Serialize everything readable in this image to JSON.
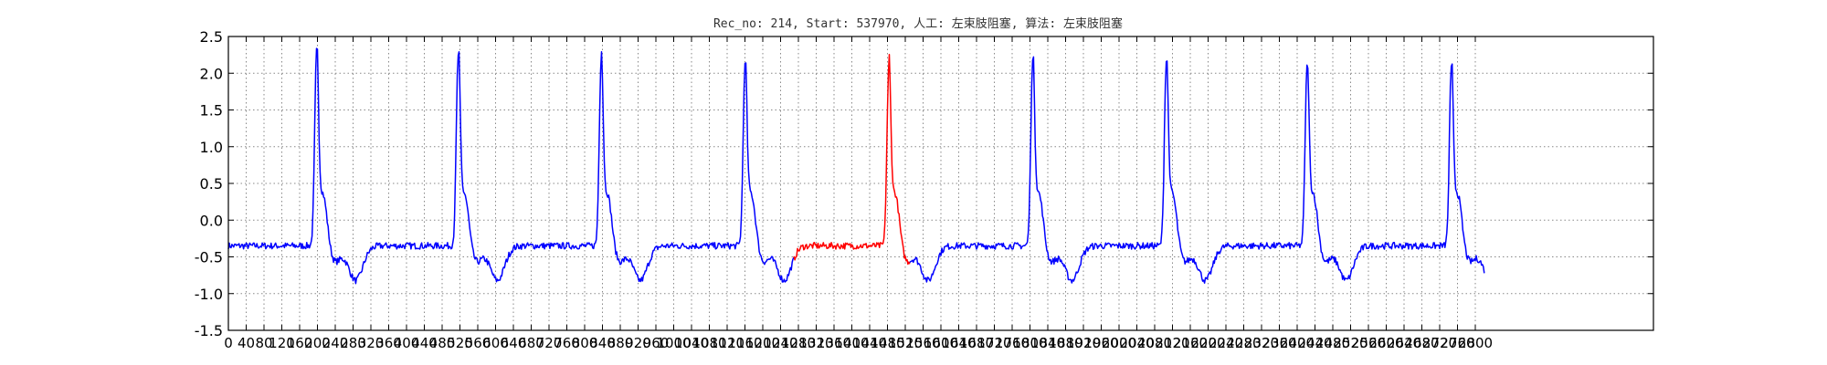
{
  "chart_data": {
    "type": "line",
    "title": "Rec_no: 214, Start: 537970, 人工: 左束肢阻塞, 算法: 左束肢阻塞",
    "xlabel": "",
    "ylabel": "",
    "xlim": [
      0,
      3200
    ],
    "ylim": [
      -1.5,
      2.5
    ],
    "yticks": [
      -1.5,
      -1.0,
      -0.5,
      0.0,
      0.5,
      1.0,
      1.5,
      2.0,
      2.5
    ],
    "ytick_labels": [
      "-1.5",
      "-1.0",
      "-0.5",
      "0.0",
      "0.5",
      "1.0",
      "1.5",
      "2.0",
      "2.5"
    ],
    "xticks": [
      0,
      40,
      80,
      120,
      160,
      200,
      240,
      280,
      320,
      360,
      400,
      440,
      480,
      520,
      560,
      600,
      640,
      680,
      720,
      760,
      800,
      840,
      880,
      920,
      960,
      1000,
      1040,
      1080,
      1120,
      1160,
      1200,
      1240,
      1280,
      1320,
      1360,
      1400,
      1440,
      1480,
      1520,
      1560,
      1600,
      1640,
      1680,
      1720,
      1760,
      1800,
      1840,
      1880,
      1920,
      1960,
      2000,
      2040,
      2080,
      2120,
      2160,
      2200,
      2240,
      2280,
      2320,
      2360,
      2400,
      2440,
      2480,
      2520,
      2560,
      2600,
      2640,
      2680,
      2720,
      2760,
      2800
    ],
    "xtick_labels": [
      "0",
      "40",
      "80",
      "120",
      "160",
      "200",
      "240",
      "280",
      "320",
      "360",
      "400",
      "440",
      "480",
      "520",
      "560",
      "600",
      "640",
      "680",
      "720",
      "760",
      "800",
      "840",
      "880",
      "920",
      "960",
      "1000",
      "1040",
      "1080",
      "1120",
      "1160",
      "1200",
      "1240",
      "1280",
      "1320",
      "1360",
      "1400",
      "1440",
      "1480",
      "1520",
      "1560",
      "1600",
      "1640",
      "1680",
      "1720",
      "1760",
      "1800",
      "1840",
      "1880",
      "1920",
      "1960",
      "2000",
      "2040",
      "2080",
      "2120",
      "2160",
      "2200",
      "2240",
      "2280",
      "2320",
      "2360",
      "2400",
      "2440",
      "2480",
      "2520",
      "2560",
      "2600",
      "2640",
      "2680",
      "2720",
      "2760",
      "2800"
    ],
    "grid": true,
    "baseline": -0.35,
    "trough_level": -0.82,
    "series_extent": [
      0,
      2820
    ],
    "beats": [
      {
        "x": 198,
        "peak": 2.22
      },
      {
        "x": 516,
        "peak": 2.17
      },
      {
        "x": 837,
        "peak": 2.08
      },
      {
        "x": 1160,
        "peak": 2.02
      },
      {
        "x": 1483,
        "peak": 1.98
      },
      {
        "x": 1806,
        "peak": 2.08
      },
      {
        "x": 2106,
        "peak": 2.08
      },
      {
        "x": 2422,
        "peak": 2.0
      },
      {
        "x": 2746,
        "peak": 1.98
      }
    ],
    "series": [
      {
        "color": "#0000ff",
        "x_range": [
          0,
          1270
        ]
      },
      {
        "color": "#ff0000",
        "x_range": [
          1270,
          1530
        ]
      },
      {
        "color": "#0000ff",
        "x_range": [
          1530,
          2820
        ]
      }
    ]
  }
}
